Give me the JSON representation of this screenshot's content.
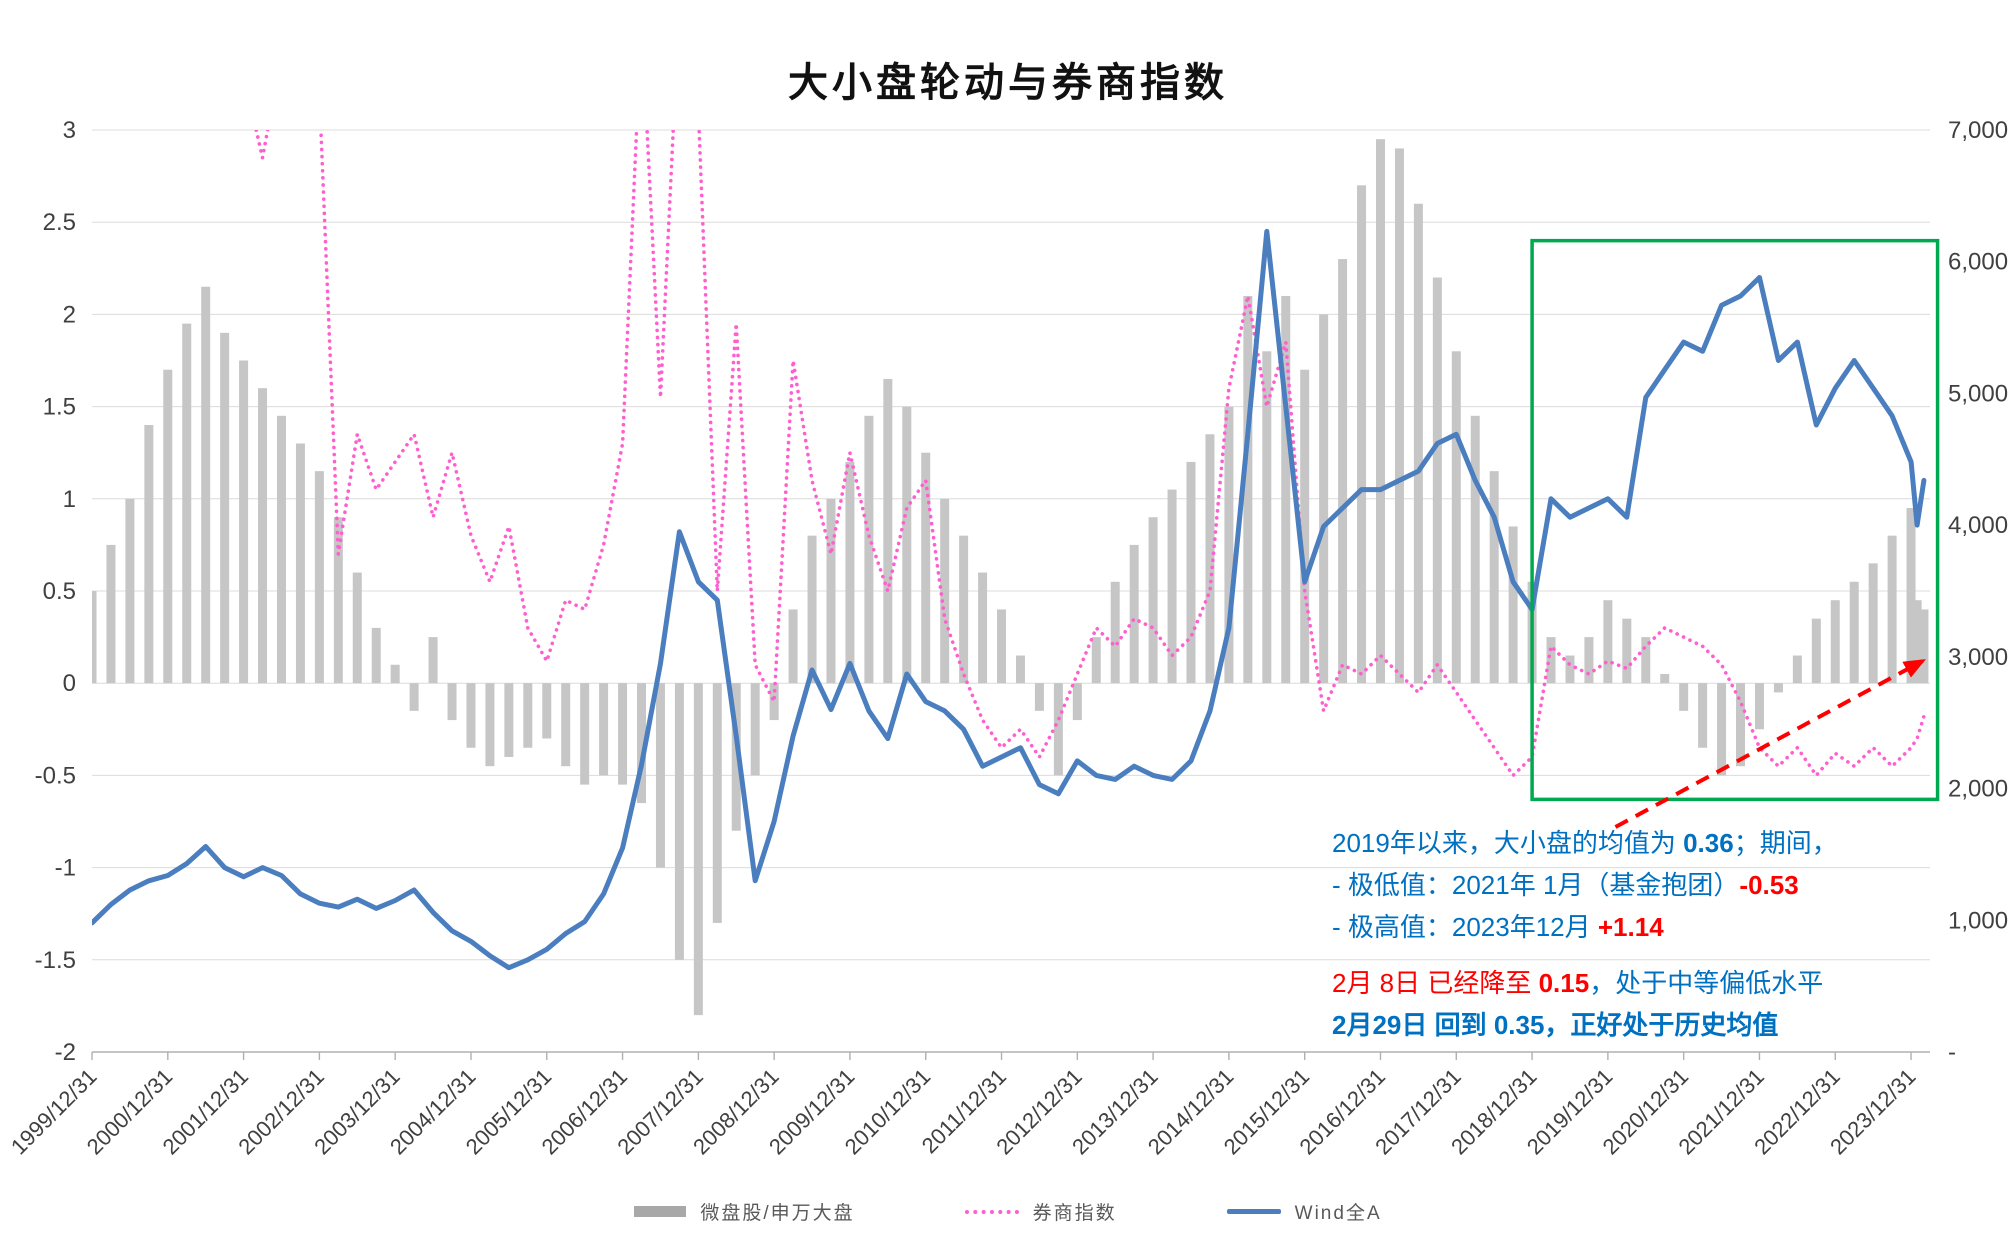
{
  "colors": {
    "annotation_blue": "#0070C0",
    "annotation_red": "#FF0000",
    "grid": "#dcdcdc",
    "axis": "#b0b0b0",
    "tick_text": "#404040"
  },
  "chart_data": {
    "type": "line",
    "title": "大小盘轮动与券商指数",
    "x_range": [
      2000,
      2024.25
    ],
    "left_axis": {
      "min": -2,
      "max": 3,
      "tick_values": [
        3,
        2.5,
        2,
        1.5,
        1,
        0.5,
        0,
        -0.5,
        -1,
        -1.5,
        -2
      ],
      "ticks": [
        "3",
        "2.5",
        "2",
        "1.5",
        "1",
        "0.5",
        "0",
        "-0.5",
        "-1",
        "-1.5",
        "-2"
      ]
    },
    "right_axis": {
      "min": 0,
      "max": 7000,
      "tick_values": [
        7000,
        6000,
        5000,
        4000,
        3000,
        2000,
        1000,
        0
      ],
      "ticks": [
        "7,000",
        "6,000",
        "5,000",
        "4,000",
        "3,000",
        "2,000",
        "1,000",
        "-"
      ]
    },
    "x_tick_labels": [
      "1999/12/31",
      "2000/12/31",
      "2001/12/31",
      "2002/12/31",
      "2003/12/31",
      "2004/12/31",
      "2005/12/31",
      "2006/12/31",
      "2007/12/31",
      "2008/12/31",
      "2009/12/31",
      "2010/12/31",
      "2011/12/31",
      "2012/12/31",
      "2013/12/31",
      "2014/12/31",
      "2015/12/31",
      "2016/12/31",
      "2017/12/31",
      "2018/12/31",
      "2019/12/31",
      "2020/12/31",
      "2021/12/31",
      "2022/12/31",
      "2023/12/31"
    ],
    "x": [
      2000,
      2000.25,
      2000.5,
      2000.75,
      2001,
      2001.25,
      2001.5,
      2001.75,
      2002,
      2002.25,
      2002.5,
      2002.75,
      2003,
      2003.25,
      2003.5,
      2003.75,
      2004,
      2004.25,
      2004.5,
      2004.75,
      2005,
      2005.25,
      2005.5,
      2005.75,
      2006,
      2006.25,
      2006.5,
      2006.75,
      2007,
      2007.25,
      2007.5,
      2007.75,
      2008,
      2008.25,
      2008.5,
      2008.75,
      2009,
      2009.25,
      2009.5,
      2009.75,
      2010,
      2010.25,
      2010.5,
      2010.75,
      2011,
      2011.25,
      2011.5,
      2011.75,
      2012,
      2012.25,
      2012.5,
      2012.75,
      2013,
      2013.25,
      2013.5,
      2013.75,
      2014,
      2014.25,
      2014.5,
      2014.75,
      2015,
      2015.25,
      2015.5,
      2015.75,
      2016,
      2016.25,
      2016.5,
      2016.75,
      2017,
      2017.25,
      2017.5,
      2017.75,
      2018,
      2018.25,
      2018.5,
      2018.75,
      2019,
      2019.25,
      2019.5,
      2019.75,
      2020,
      2020.25,
      2020.5,
      2020.75,
      2021,
      2021.25,
      2021.5,
      2021.75,
      2022,
      2022.25,
      2022.5,
      2022.75,
      2023,
      2023.25,
      2023.5,
      2023.75,
      2024,
      2024.08,
      2024.17
    ],
    "series": [
      {
        "name": "微盘股/申万大盘",
        "type": "bar",
        "axis": "left",
        "color": "#c6c6c6",
        "values": [
          0.5,
          0.75,
          1.0,
          1.4,
          1.7,
          1.95,
          2.15,
          1.9,
          1.75,
          1.6,
          1.45,
          1.3,
          1.15,
          0.9,
          0.6,
          0.3,
          0.1,
          -0.15,
          0.25,
          -0.2,
          -0.35,
          -0.45,
          -0.4,
          -0.35,
          -0.3,
          -0.45,
          -0.55,
          -0.5,
          -0.55,
          -0.65,
          -1.0,
          -1.5,
          -1.8,
          -1.3,
          -0.8,
          -0.5,
          -0.2,
          0.4,
          0.8,
          1.0,
          1.2,
          1.45,
          1.65,
          1.5,
          1.25,
          1.0,
          0.8,
          0.6,
          0.4,
          0.15,
          -0.15,
          -0.5,
          -0.2,
          0.25,
          0.55,
          0.75,
          0.9,
          1.05,
          1.2,
          1.35,
          1.5,
          2.1,
          1.8,
          2.1,
          1.7,
          2.0,
          2.3,
          2.7,
          2.95,
          2.9,
          2.6,
          2.2,
          1.8,
          1.45,
          1.15,
          0.85,
          0.55,
          0.25,
          0.15,
          0.25,
          0.45,
          0.35,
          0.25,
          0.05,
          -0.15,
          -0.35,
          -0.5,
          -0.45,
          -0.25,
          -0.05,
          0.15,
          0.35,
          0.45,
          0.55,
          0.65,
          0.8,
          0.95,
          0.45,
          0.4
        ]
      },
      {
        "name": "券商指数",
        "type": "line",
        "style": "dotted",
        "axis": "left",
        "color": "#ff5fce",
        "values": [
          null,
          null,
          null,
          null,
          null,
          null,
          null,
          null,
          3.3,
          2.85,
          3.4,
          3.8,
          3.2,
          0.7,
          1.35,
          1.05,
          1.2,
          1.35,
          0.9,
          1.25,
          0.8,
          0.55,
          0.85,
          0.3,
          0.12,
          0.45,
          0.4,
          0.75,
          1.3,
          3.6,
          1.55,
          3.7,
          3.1,
          0.5,
          1.95,
          0.1,
          -0.1,
          1.75,
          1.1,
          0.7,
          1.25,
          0.8,
          0.5,
          0.95,
          1.1,
          0.35,
          0.05,
          -0.2,
          -0.35,
          -0.25,
          -0.4,
          -0.2,
          0.05,
          0.3,
          0.2,
          0.35,
          0.3,
          0.15,
          0.25,
          0.5,
          1.6,
          2.1,
          1.5,
          1.85,
          0.5,
          -0.15,
          0.1,
          0.05,
          0.15,
          0.05,
          -0.05,
          0.1,
          -0.05,
          -0.2,
          -0.35,
          -0.5,
          -0.4,
          0.2,
          0.1,
          0.05,
          0.12,
          0.08,
          0.2,
          0.3,
          0.25,
          0.2,
          0.1,
          -0.1,
          -0.35,
          -0.45,
          -0.35,
          -0.5,
          -0.38,
          -0.45,
          -0.35,
          -0.45,
          -0.35,
          -0.3,
          -0.18
        ]
      },
      {
        "name": "Wind全A",
        "type": "line",
        "style": "solid",
        "axis": "right",
        "color": "#4a7ebf",
        "values": [
          980,
          1120,
          1230,
          1300,
          1340,
          1430,
          1560,
          1400,
          1330,
          1400,
          1340,
          1200,
          1130,
          1100,
          1160,
          1090,
          1150,
          1230,
          1060,
          920,
          840,
          730,
          640,
          700,
          780,
          900,
          990,
          1200,
          1550,
          2180,
          2950,
          3950,
          3570,
          3430,
          2400,
          1300,
          1750,
          2400,
          2900,
          2600,
          2950,
          2590,
          2380,
          2870,
          2660,
          2590,
          2450,
          2170,
          2240,
          2310,
          2030,
          1960,
          2210,
          2100,
          2070,
          2170,
          2100,
          2070,
          2210,
          2590,
          3220,
          4700,
          6230,
          4900,
          3570,
          3990,
          4130,
          4270,
          4270,
          4340,
          4410,
          4620,
          4690,
          4340,
          4060,
          3570,
          3360,
          4200,
          4060,
          4130,
          4200,
          4060,
          4970,
          5180,
          5390,
          5320,
          5670,
          5740,
          5880,
          5250,
          5390,
          4760,
          5040,
          5250,
          5040,
          4830,
          4480,
          4000,
          4340
        ]
      }
    ],
    "highlight_box": {
      "x_start": 2019.0,
      "x_end": 2024.35,
      "y_top": 2.4,
      "y_bottom": -0.63,
      "color": "#00A94F"
    },
    "trend_arrow": {
      "x1": 2020.1,
      "y1": -0.78,
      "x2": 2024.15,
      "y2": 0.12,
      "color": "#FF0000",
      "style": "dashed"
    },
    "legend_position": "bottom",
    "grid": "horizontal"
  },
  "annotations": {
    "top_lines": [
      [
        {
          "text": "2019年以来，大小盘的均值为 ",
          "color": "blue"
        },
        {
          "text": "0.36",
          "color": "blue",
          "bold": true
        },
        {
          "text": "；期间，",
          "color": "blue"
        }
      ],
      [
        {
          "text": "- 极低值：2021年 1月（基金抱团）",
          "color": "blue"
        },
        {
          "text": "-0.53",
          "color": "red",
          "bold": true
        }
      ],
      [
        {
          "text": "- 极高值：2023年12月 ",
          "color": "blue"
        },
        {
          "text": "+1.14",
          "color": "red",
          "bold": true
        }
      ]
    ],
    "bottom_lines": [
      [
        {
          "text": "2月 8日 已经降至 ",
          "color": "red"
        },
        {
          "text": "0.15",
          "color": "red",
          "bold": true
        },
        {
          "text": "，处于中等偏低水平",
          "color": "blue"
        }
      ],
      [
        {
          "text": "2月29日 回到 0.35，正好处于历史均值",
          "color": "blue",
          "bold": true
        }
      ]
    ]
  }
}
